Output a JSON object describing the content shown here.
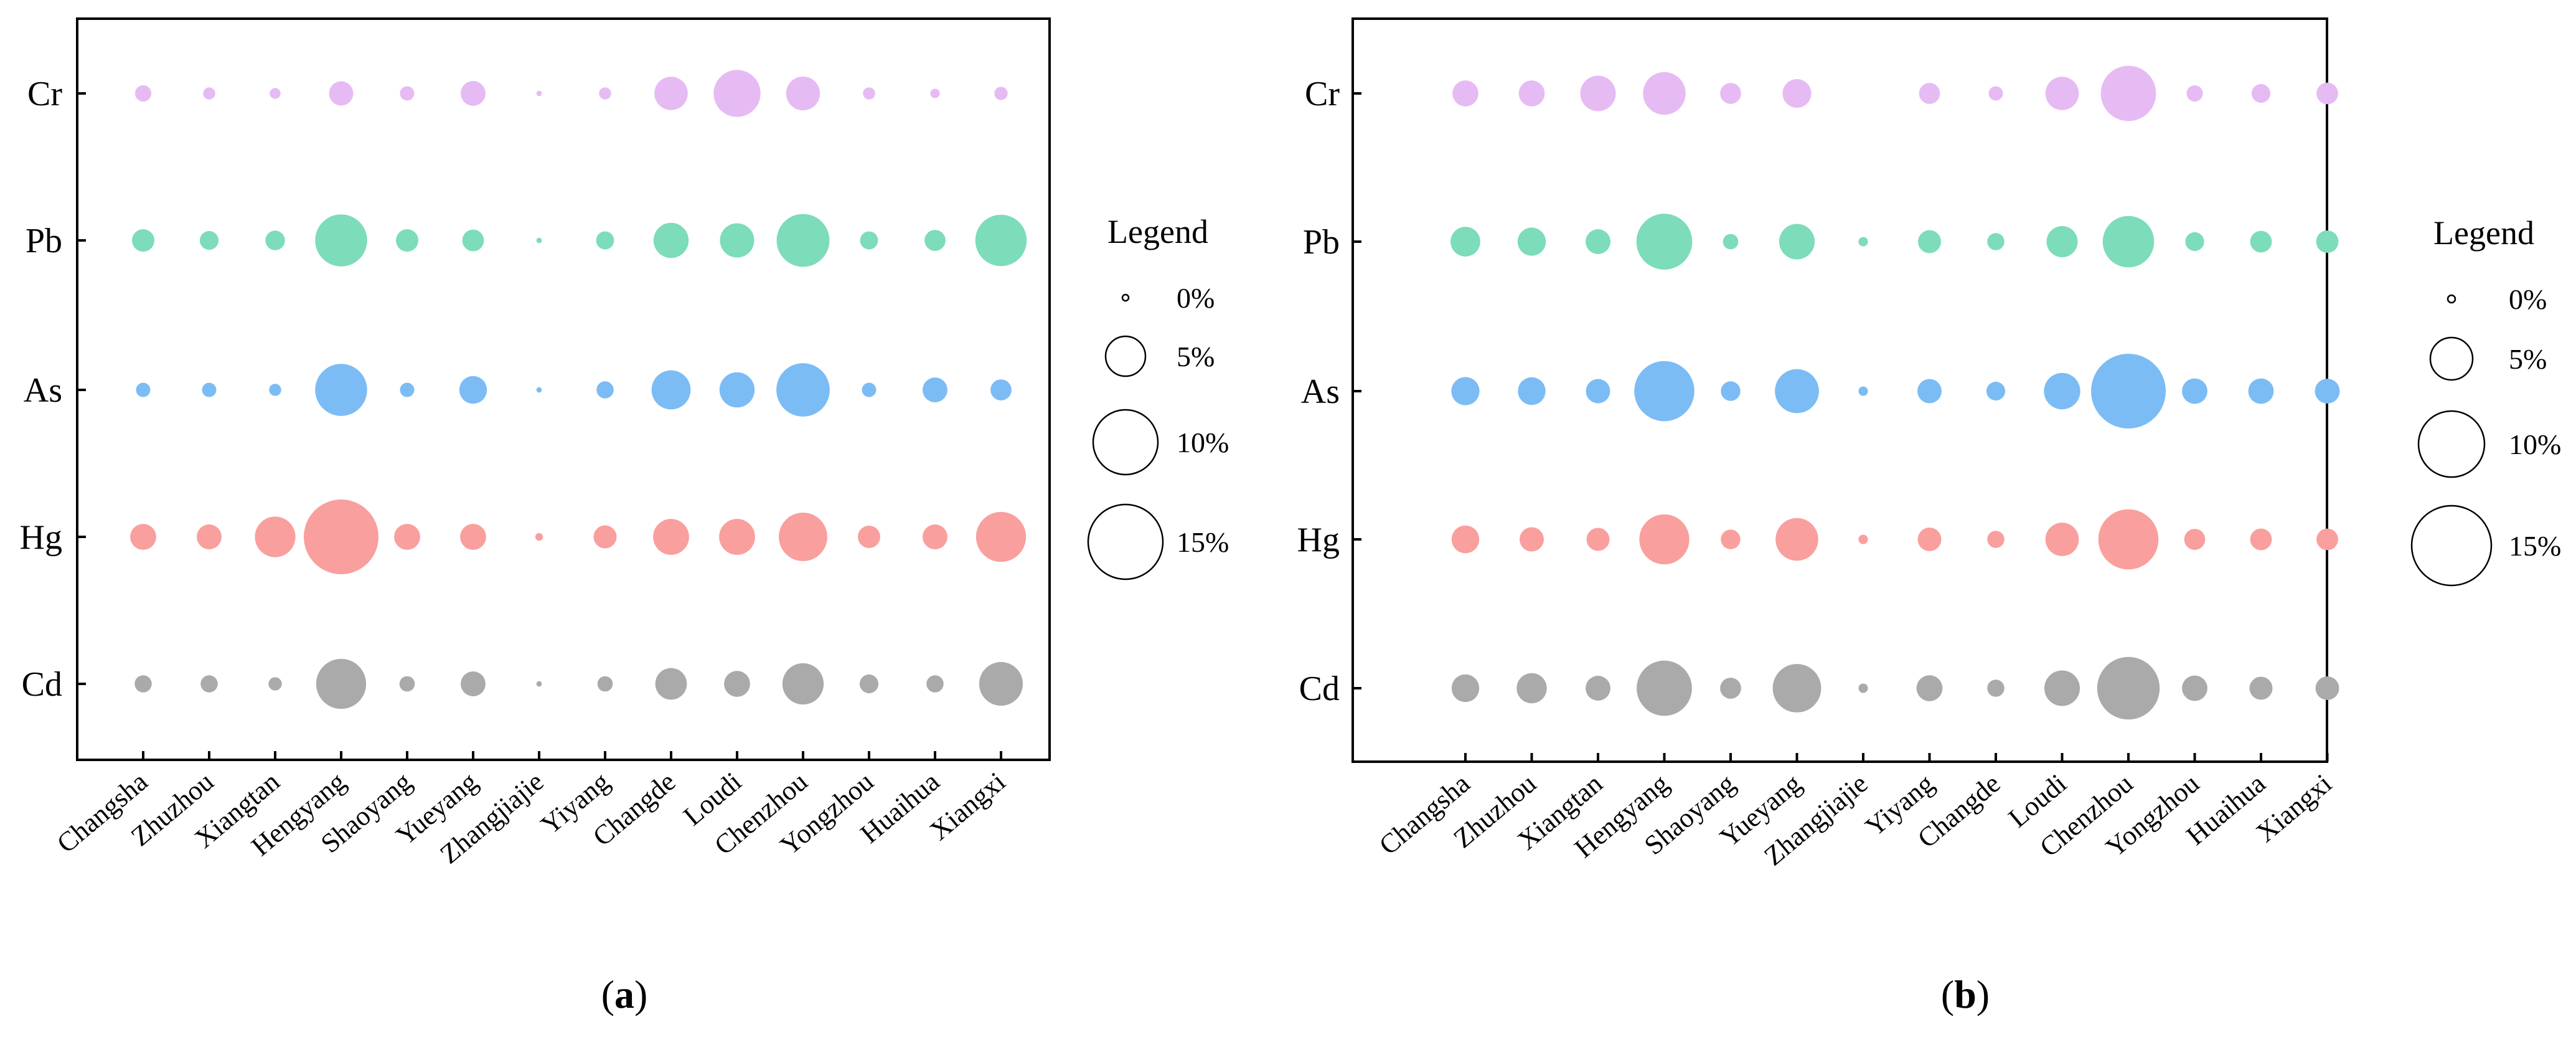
{
  "chart_data": [
    {
      "type": "bubble",
      "panel_label": "a",
      "categories": [
        "Changsha",
        "Zhuzhou",
        "Xiangtan",
        "Hengyang",
        "Shaoyang",
        "Yueyang",
        "Zhangjiajie",
        "Yiyang",
        "Changde",
        "Loudi",
        "Chenzhou",
        "Yongzhou",
        "Huaihua",
        "Xiangxi"
      ],
      "series": [
        {
          "name": "Cr",
          "color": "#e6bbf4",
          "values": [
            0.9,
            0.5,
            0.4,
            2.0,
            0.7,
            2.1,
            0.1,
            0.5,
            3.8,
            7.5,
            3.9,
            0.5,
            0.3,
            0.6
          ]
        },
        {
          "name": "Pb",
          "color": "#7ddcb9",
          "values": [
            1.7,
            1.2,
            1.3,
            9.2,
            1.7,
            1.6,
            0.1,
            1.1,
            4.2,
            4.0,
            9.5,
            1.1,
            1.5,
            9.0
          ]
        },
        {
          "name": "As",
          "color": "#7cbcf5",
          "values": [
            0.7,
            0.7,
            0.5,
            9.2,
            0.7,
            2.6,
            0.1,
            1.0,
            5.2,
            4.2,
            9.7,
            0.7,
            2.1,
            1.5
          ]
        },
        {
          "name": "Hg",
          "color": "#f99f9d",
          "values": [
            2.3,
            2.1,
            5.6,
            19.0,
            2.3,
            2.3,
            0.2,
            1.8,
            4.4,
            4.4,
            8.0,
            1.7,
            2.1,
            8.5
          ]
        },
        {
          "name": "Cd",
          "color": "#aaaaaa",
          "values": [
            1.0,
            1.0,
            0.6,
            8.5,
            0.8,
            2.1,
            0.1,
            0.8,
            3.4,
            2.3,
            5.8,
            1.2,
            1.0,
            6.5
          ]
        }
      ],
      "legend": {
        "title": "Legend",
        "values": [
          0,
          5,
          10,
          15
        ],
        "labels": [
          "0%",
          "5%",
          "10%",
          "15%"
        ]
      }
    },
    {
      "type": "bubble",
      "panel_label": "b",
      "categories": [
        "Changsha",
        "Zhuzhou",
        "Xiangtan",
        "Hengyang",
        "Shaoyang",
        "Yueyang",
        "Zhangjiajie",
        "Yiyang",
        "Changde",
        "Loudi",
        "Chenzhou",
        "Yongzhou",
        "Huaihua",
        "Xiangxi"
      ],
      "series": [
        {
          "name": "Cr",
          "color": "#e6bbf4",
          "values": [
            2.3,
            2.3,
            4.3,
            6.2,
            1.5,
            2.8,
            0.0,
            1.5,
            0.7,
            3.8,
            10.4,
            0.9,
            1.2,
            1.6
          ]
        },
        {
          "name": "Pb",
          "color": "#7ddcb9",
          "values": [
            3.0,
            2.7,
            2.1,
            10.6,
            0.8,
            4.3,
            0.3,
            1.8,
            1.0,
            3.3,
            9.0,
            1.2,
            1.6,
            1.7
          ]
        },
        {
          "name": "As",
          "color": "#7cbcf5",
          "values": [
            2.7,
            2.6,
            2.0,
            12.3,
            1.3,
            6.6,
            0.3,
            2.0,
            1.2,
            4.5,
            19.0,
            2.2,
            2.2,
            2.1
          ]
        },
        {
          "name": "Hg",
          "color": "#f99f9d",
          "values": [
            2.6,
            2.0,
            1.8,
            8.5,
            1.3,
            6.2,
            0.3,
            1.9,
            1.0,
            3.8,
            12.3,
            1.5,
            1.6,
            1.6
          ]
        },
        {
          "name": "Cd",
          "color": "#aaaaaa",
          "values": [
            2.6,
            3.1,
            2.1,
            10.4,
            1.5,
            8.0,
            0.3,
            2.3,
            1.0,
            4.3,
            13.3,
            2.2,
            1.8,
            1.9
          ]
        }
      ],
      "legend": {
        "title": "Legend",
        "values": [
          0,
          5,
          10,
          15
        ],
        "labels": [
          "0%",
          "5%",
          "10%",
          "15%"
        ]
      }
    }
  ]
}
